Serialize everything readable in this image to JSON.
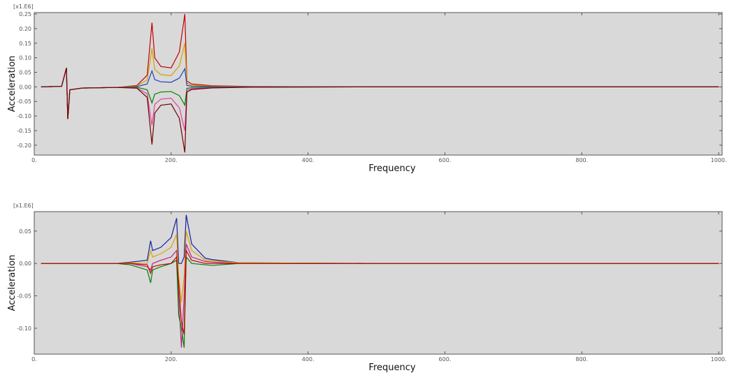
{
  "chart_data": [
    {
      "type": "line",
      "y_multiplier": "[x1.E6]",
      "xlabel": "Frequency",
      "ylabel": "Acceleration",
      "xlim": [
        0,
        1005
      ],
      "ylim": [
        -0.234,
        0.255
      ],
      "xticks": [
        {
          "value": 0,
          "label": "0."
        },
        {
          "value": 200,
          "label": "200."
        },
        {
          "value": 400,
          "label": "400."
        },
        {
          "value": 600,
          "label": "600."
        },
        {
          "value": 800,
          "label": "800."
        },
        {
          "value": 1000,
          "label": "1000."
        }
      ],
      "yticks": [
        0.25,
        {
          "value": 0.2,
          "label": "0.20"
        },
        0.15,
        {
          "value": 0.1,
          "label": "0.10"
        },
        0.05,
        {
          "value": 0,
          "label": "0.00"
        },
        -0.05,
        {
          "value": -0.1,
          "label": "-0.10"
        },
        -0.15,
        {
          "value": -0.2,
          "label": "-0.20"
        }
      ],
      "x": [
        10,
        40,
        47,
        49,
        52,
        70,
        120,
        150,
        165,
        172,
        176,
        185,
        200,
        212,
        220,
        223,
        230,
        260,
        320,
        500,
        1000
      ],
      "series": [
        {
          "color": "#c00000",
          "values": [
            0,
            0.002,
            0.065,
            -0.11,
            -0.01,
            -0.004,
            -0.002,
            0.005,
            0.04,
            0.22,
            0.1,
            0.07,
            0.065,
            0.12,
            0.25,
            0.02,
            0.01,
            0.004,
            0.001,
            0,
            0
          ]
        },
        {
          "color": "#d4a000",
          "values": [
            0,
            0.002,
            0.065,
            -0.11,
            -0.01,
            -0.004,
            -0.002,
            0.003,
            0.024,
            0.132,
            0.06,
            0.042,
            0.039,
            0.072,
            0.15,
            0.012,
            0.006,
            0.0024,
            0.0006,
            0,
            0
          ]
        },
        {
          "color": "#2040c0",
          "values": [
            0,
            0.002,
            0.065,
            -0.11,
            -0.01,
            -0.004,
            -0.002,
            0.001,
            0.01,
            0.055,
            0.025,
            0.0175,
            0.016,
            0.03,
            0.0625,
            0.005,
            0.0025,
            0.001,
            0.0003,
            0,
            0
          ]
        },
        {
          "color": "#008000",
          "values": [
            0,
            0.002,
            0.065,
            -0.11,
            -0.01,
            -0.004,
            -0.002,
            -0.001,
            -0.01,
            -0.055,
            -0.025,
            -0.0175,
            -0.016,
            -0.03,
            -0.0625,
            -0.005,
            -0.0025,
            -0.001,
            -0.0003,
            0,
            0
          ]
        },
        {
          "color": "#e040a0",
          "values": [
            0,
            0.002,
            0.065,
            -0.11,
            -0.01,
            -0.004,
            -0.002,
            -0.003,
            -0.024,
            -0.132,
            -0.06,
            -0.042,
            -0.039,
            -0.072,
            -0.15,
            -0.012,
            -0.006,
            -0.0024,
            -0.0006,
            0,
            0
          ]
        },
        {
          "color": "#700000",
          "values": [
            0,
            0.002,
            0.065,
            -0.11,
            -0.01,
            -0.004,
            -0.002,
            -0.0045,
            -0.036,
            -0.198,
            -0.09,
            -0.063,
            -0.0585,
            -0.108,
            -0.225,
            -0.018,
            -0.009,
            -0.0036,
            -0.0009,
            0,
            0
          ]
        }
      ]
    },
    {
      "type": "line",
      "y_multiplier": "[x1.E6]",
      "xlabel": "Frequency",
      "ylabel": "Acceleration",
      "xlim": [
        0,
        1005
      ],
      "ylim": [
        -0.14,
        0.08
      ],
      "xticks": [
        {
          "value": 0,
          "label": "0."
        },
        {
          "value": 200,
          "label": "200."
        },
        {
          "value": 400,
          "label": "400."
        },
        {
          "value": 600,
          "label": "600."
        },
        {
          "value": 800,
          "label": "800."
        },
        {
          "value": 1000,
          "label": "1000."
        }
      ],
      "yticks": [
        0.05,
        {
          "value": 0,
          "label": "0.00"
        },
        -0.05,
        {
          "value": -0.1,
          "label": "-0.10"
        }
      ],
      "x": [
        10,
        120,
        140,
        165,
        170,
        173,
        185,
        200,
        208,
        211,
        215,
        219,
        222,
        230,
        250,
        260,
        300,
        500,
        1000
      ],
      "series": [
        {
          "color": "#1020a0",
          "values": [
            0,
            0,
            0.002,
            0.005,
            0.035,
            0.02,
            0.025,
            0.04,
            0.07,
            0,
            0,
            0.01,
            0.075,
            0.03,
            0.008,
            0.006,
            0.001,
            0,
            0
          ]
        },
        {
          "color": "#e0a000",
          "values": [
            0,
            0,
            0.001,
            0,
            0.02,
            0.01,
            0.015,
            0.025,
            0.045,
            -0.02,
            -0.06,
            -0.02,
            0.05,
            0.02,
            0.005,
            0.004,
            0.001,
            0,
            0
          ]
        },
        {
          "color": "#c02080",
          "values": [
            0,
            0,
            0,
            -0.005,
            -0.01,
            0,
            0.005,
            0.01,
            0.02,
            -0.05,
            -0.13,
            -0.05,
            0.03,
            0.01,
            0.003,
            0.002,
            0,
            0,
            0
          ]
        },
        {
          "color": "#008000",
          "values": [
            0,
            0,
            -0.002,
            -0.01,
            -0.03,
            -0.01,
            -0.005,
            0,
            0.005,
            -0.08,
            -0.1,
            -0.13,
            0.01,
            0,
            -0.002,
            -0.003,
            0,
            0,
            0
          ]
        },
        {
          "color": "#c00000",
          "values": [
            0,
            0,
            0,
            -0.002,
            -0.015,
            -0.005,
            -0.002,
            0,
            0.01,
            -0.03,
            -0.09,
            -0.11,
            0.02,
            0.005,
            0,
            0,
            0,
            0,
            0
          ]
        }
      ]
    }
  ]
}
